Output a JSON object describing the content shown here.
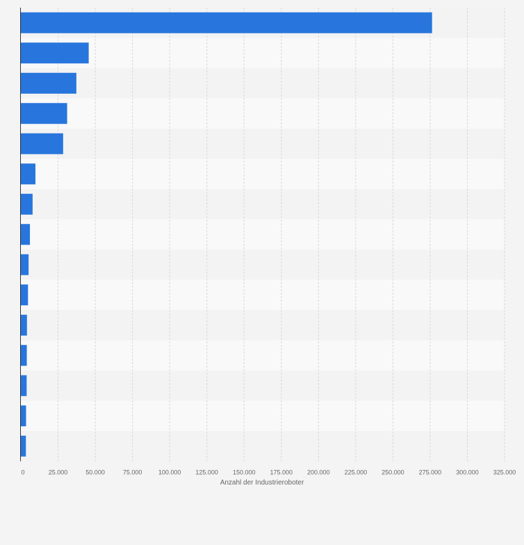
{
  "chart_data": {
    "type": "bar",
    "orientation": "horizontal",
    "title": "",
    "xlabel": "Anzahl der Industrieroboter",
    "ylabel": "",
    "xlim": [
      0,
      325000
    ],
    "grid": true,
    "legend": "none",
    "x_ticks": [
      0,
      25000,
      50000,
      75000,
      100000,
      125000,
      150000,
      175000,
      200000,
      225000,
      250000,
      275000,
      300000,
      325000
    ],
    "x_tick_labels": [
      "0",
      "25.000",
      "50.000",
      "75.000",
      "100.000",
      "125.000",
      "150.000",
      "175.000",
      "200.000",
      "225.000",
      "250.000",
      "275.000",
      "300.000",
      "325.000"
    ],
    "categories": [
      "",
      "",
      "",
      "",
      "",
      "",
      "",
      "",
      "",
      "",
      "",
      "",
      "",
      "",
      ""
    ],
    "values": [
      276300,
      45600,
      37300,
      31100,
      28400,
      9800,
      7900,
      6100,
      5200,
      4800,
      4100,
      4000,
      3900,
      3500,
      3400
    ],
    "bar_color": "#2876dd"
  },
  "colors": {
    "background": "#f4f4f4",
    "band_light": "#f9f9f9",
    "band_dark": "#f3f3f3",
    "grid": "#d8d8d8",
    "axis": "#333333",
    "tick_text": "#666666"
  }
}
